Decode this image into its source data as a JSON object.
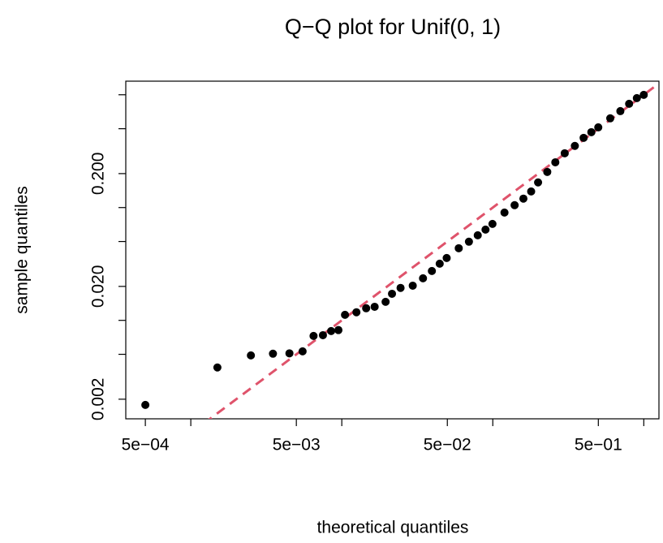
{
  "chart_data": {
    "type": "scatter",
    "title": "Q−Q plot for  Unif(0, 1)",
    "x_label": "theoretical quantiles",
    "y_label": "sample quantiles",
    "log_x": true,
    "log_y": true,
    "xlim": [
      0.000371,
      1.26
    ],
    "ylim": [
      0.00134,
      1.32
    ],
    "xticks": [
      {
        "value": 0.0005,
        "label": "5e−04"
      },
      {
        "value": 0.001,
        "label": null
      },
      {
        "value": 0.005,
        "label": "5e−03"
      },
      {
        "value": 0.01,
        "label": null
      },
      {
        "value": 0.05,
        "label": "5e−02"
      },
      {
        "value": 0.1,
        "label": null
      },
      {
        "value": 0.5,
        "label": "5e−01"
      },
      {
        "value": 1,
        "label": null
      }
    ],
    "yticks": [
      {
        "value": 0.002,
        "label": "0.002"
      },
      {
        "value": 0.005,
        "label": null
      },
      {
        "value": 0.01,
        "label": null
      },
      {
        "value": 0.02,
        "label": "0.020"
      },
      {
        "value": 0.05,
        "label": null
      },
      {
        "value": 0.1,
        "label": null
      },
      {
        "value": 0.2,
        "label": "0.200"
      },
      {
        "value": 0.5,
        "label": null
      },
      {
        "value": 1,
        "label": null
      }
    ],
    "point_color": "#000000",
    "x": [
      0.0005,
      0.0015,
      0.0025,
      0.0035,
      0.0045,
      0.0055,
      0.0065,
      0.0075,
      0.0085,
      0.0095,
      0.0105,
      0.0125,
      0.0145,
      0.0165,
      0.0195,
      0.0215,
      0.0245,
      0.0295,
      0.0345,
      0.0395,
      0.0445,
      0.0495,
      0.0595,
      0.0695,
      0.0795,
      0.0895,
      0.0995,
      0.1195,
      0.1395,
      0.1595,
      0.1795,
      0.1995,
      0.2295,
      0.2595,
      0.2995,
      0.3495,
      0.3995,
      0.4495,
      0.4995,
      0.5995,
      0.6995,
      0.7995,
      0.8995,
      0.9995
    ],
    "y": [
      0.00178,
      0.00382,
      0.00489,
      0.00506,
      0.0051,
      0.00531,
      0.00728,
      0.00739,
      0.00804,
      0.0082,
      0.0112,
      0.0118,
      0.0128,
      0.0132,
      0.0146,
      0.0172,
      0.0194,
      0.0203,
      0.0236,
      0.0274,
      0.0318,
      0.0357,
      0.0436,
      0.0498,
      0.0568,
      0.0638,
      0.0716,
      0.0903,
      0.105,
      0.12,
      0.139,
      0.167,
      0.207,
      0.252,
      0.303,
      0.352,
      0.415,
      0.466,
      0.514,
      0.618,
      0.716,
      0.832,
      0.934,
      0.998
    ],
    "reference_line": {
      "slope": 1,
      "intercept": 0,
      "color": "#df536b",
      "dashed": true
    }
  }
}
